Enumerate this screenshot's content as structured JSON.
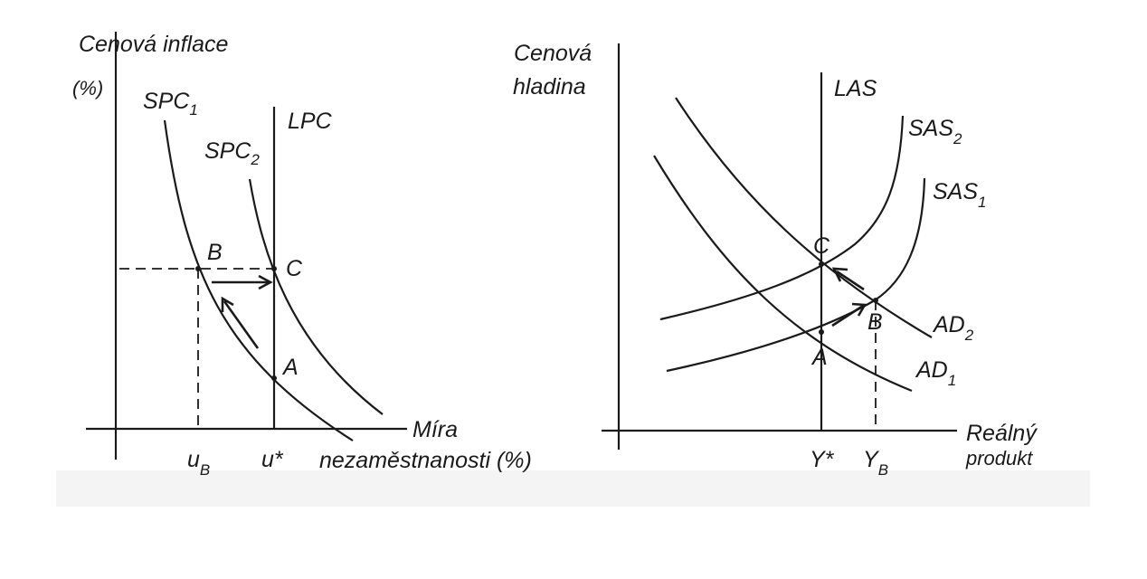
{
  "left_panel": {
    "y_axis_label_line1": "Cenová inflace",
    "y_axis_label_line2": "(%)",
    "x_axis_label_line1": "Míra",
    "x_axis_label_line2": "nezaměstnanosti (%)",
    "spc1": {
      "base": "SPC",
      "sub": "1"
    },
    "spc2": {
      "base": "SPC",
      "sub": "2"
    },
    "lpc": "LPC",
    "point_a": "A",
    "point_b": "B",
    "point_c": "C",
    "tick_ub": {
      "base": "u",
      "sub": "B"
    },
    "tick_ustar": "u*"
  },
  "right_panel": {
    "y_axis_label_line1": "Cenová",
    "y_axis_label_line2": "hladina",
    "x_axis_label_line1": "Reálný",
    "x_axis_label_line2": "produkt",
    "las": "LAS",
    "sas2": {
      "base": "SAS",
      "sub": "2"
    },
    "sas1": {
      "base": "SAS",
      "sub": "1"
    },
    "ad2": {
      "base": "AD",
      "sub": "2"
    },
    "ad1": {
      "base": "AD",
      "sub": "1"
    },
    "point_a": "A",
    "point_b": "B",
    "point_c": "C",
    "tick_ystar": "Y*",
    "tick_yb": {
      "base": "Y",
      "sub": "B"
    }
  },
  "colors": {
    "ink": "#1a1a1a",
    "background": "#ffffff"
  }
}
